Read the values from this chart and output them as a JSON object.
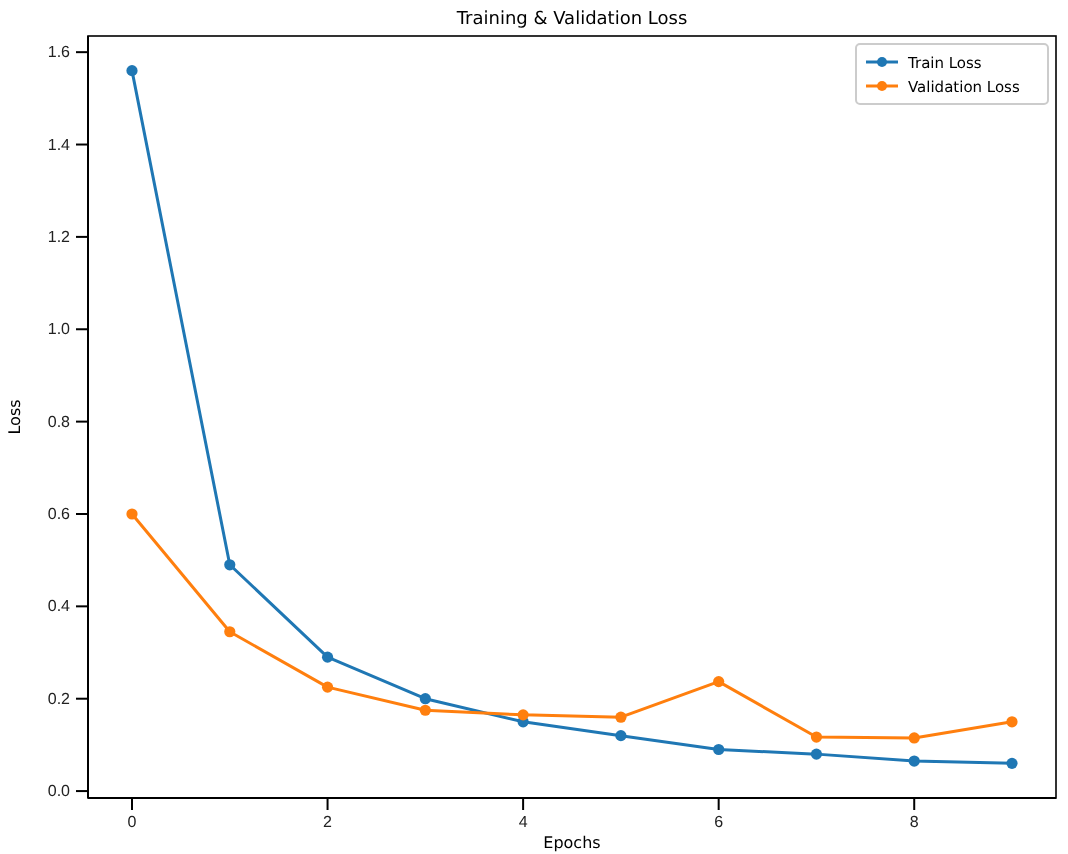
{
  "chart_data": {
    "type": "line",
    "title": "Training & Validation Loss",
    "xlabel": "Epochs",
    "ylabel": "Loss",
    "x": [
      0,
      1,
      2,
      3,
      4,
      5,
      6,
      7,
      8,
      9
    ],
    "series": [
      {
        "name": "Train Loss",
        "color": "#1f77b4",
        "values": [
          1.56,
          0.49,
          0.29,
          0.2,
          0.15,
          0.12,
          0.09,
          0.08,
          0.065,
          0.06
        ]
      },
      {
        "name": "Validation Loss",
        "color": "#ff7f0e",
        "values": [
          0.6,
          0.345,
          0.225,
          0.175,
          0.165,
          0.16,
          0.237,
          0.117,
          0.115,
          0.15
        ]
      }
    ],
    "xlim": [
      -0.45,
      9.45
    ],
    "xticks": [
      0,
      2,
      4,
      6,
      8
    ],
    "ylim": [
      -0.015,
      1.635
    ],
    "yticks": [
      {
        "value": 0,
        "label": "0.0"
      },
      0.2,
      0.4,
      0.6,
      0.8,
      {
        "value": 1,
        "label": "1.0"
      },
      1.2,
      1.4,
      1.6
    ],
    "marker": "circle",
    "line_style": "solid",
    "legend": "top right",
    "grid": false
  }
}
